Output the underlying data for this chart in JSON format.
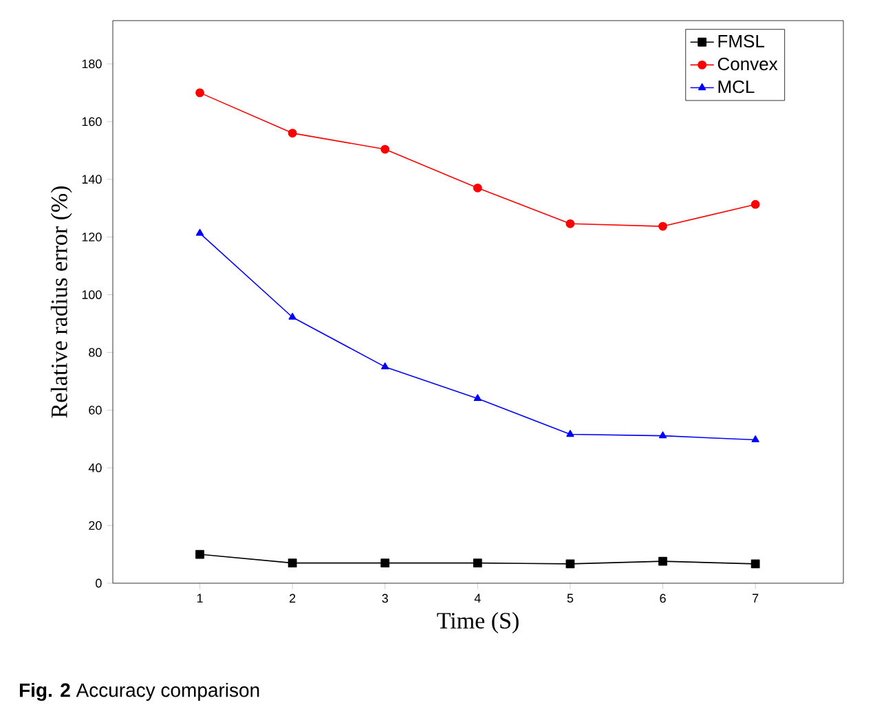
{
  "chart_data": {
    "type": "line",
    "xlabel": "Time (S)",
    "ylabel": "Relative radius error (%)",
    "x": [
      1,
      2,
      3,
      4,
      5,
      6,
      7
    ],
    "series": [
      {
        "name": "FMSL",
        "color": "#000000",
        "marker": "square",
        "values": [
          10,
          7,
          7,
          7,
          6.7,
          7.6,
          6.7
        ]
      },
      {
        "name": "Convex",
        "color": "#ff0000",
        "marker": "circle",
        "values": [
          170,
          156,
          150.4,
          137,
          124.6,
          123.7,
          131.3
        ]
      },
      {
        "name": "MCL",
        "color": "#0000ff",
        "marker": "triangle",
        "values": [
          121.3,
          92.2,
          75,
          64,
          51.6,
          51.1,
          49.7
        ]
      }
    ],
    "xlim": [
      0.06,
      7.95
    ],
    "ylim": [
      0,
      195
    ],
    "xticks": [
      1,
      2,
      3,
      4,
      5,
      6,
      7
    ],
    "yticks": [
      0,
      20,
      40,
      60,
      80,
      100,
      120,
      140,
      160,
      180
    ],
    "legend": "top right",
    "grid": false,
    "line_style": "solid",
    "annotations": [
      "**Fig. 2** Accuracy comparison"
    ]
  }
}
